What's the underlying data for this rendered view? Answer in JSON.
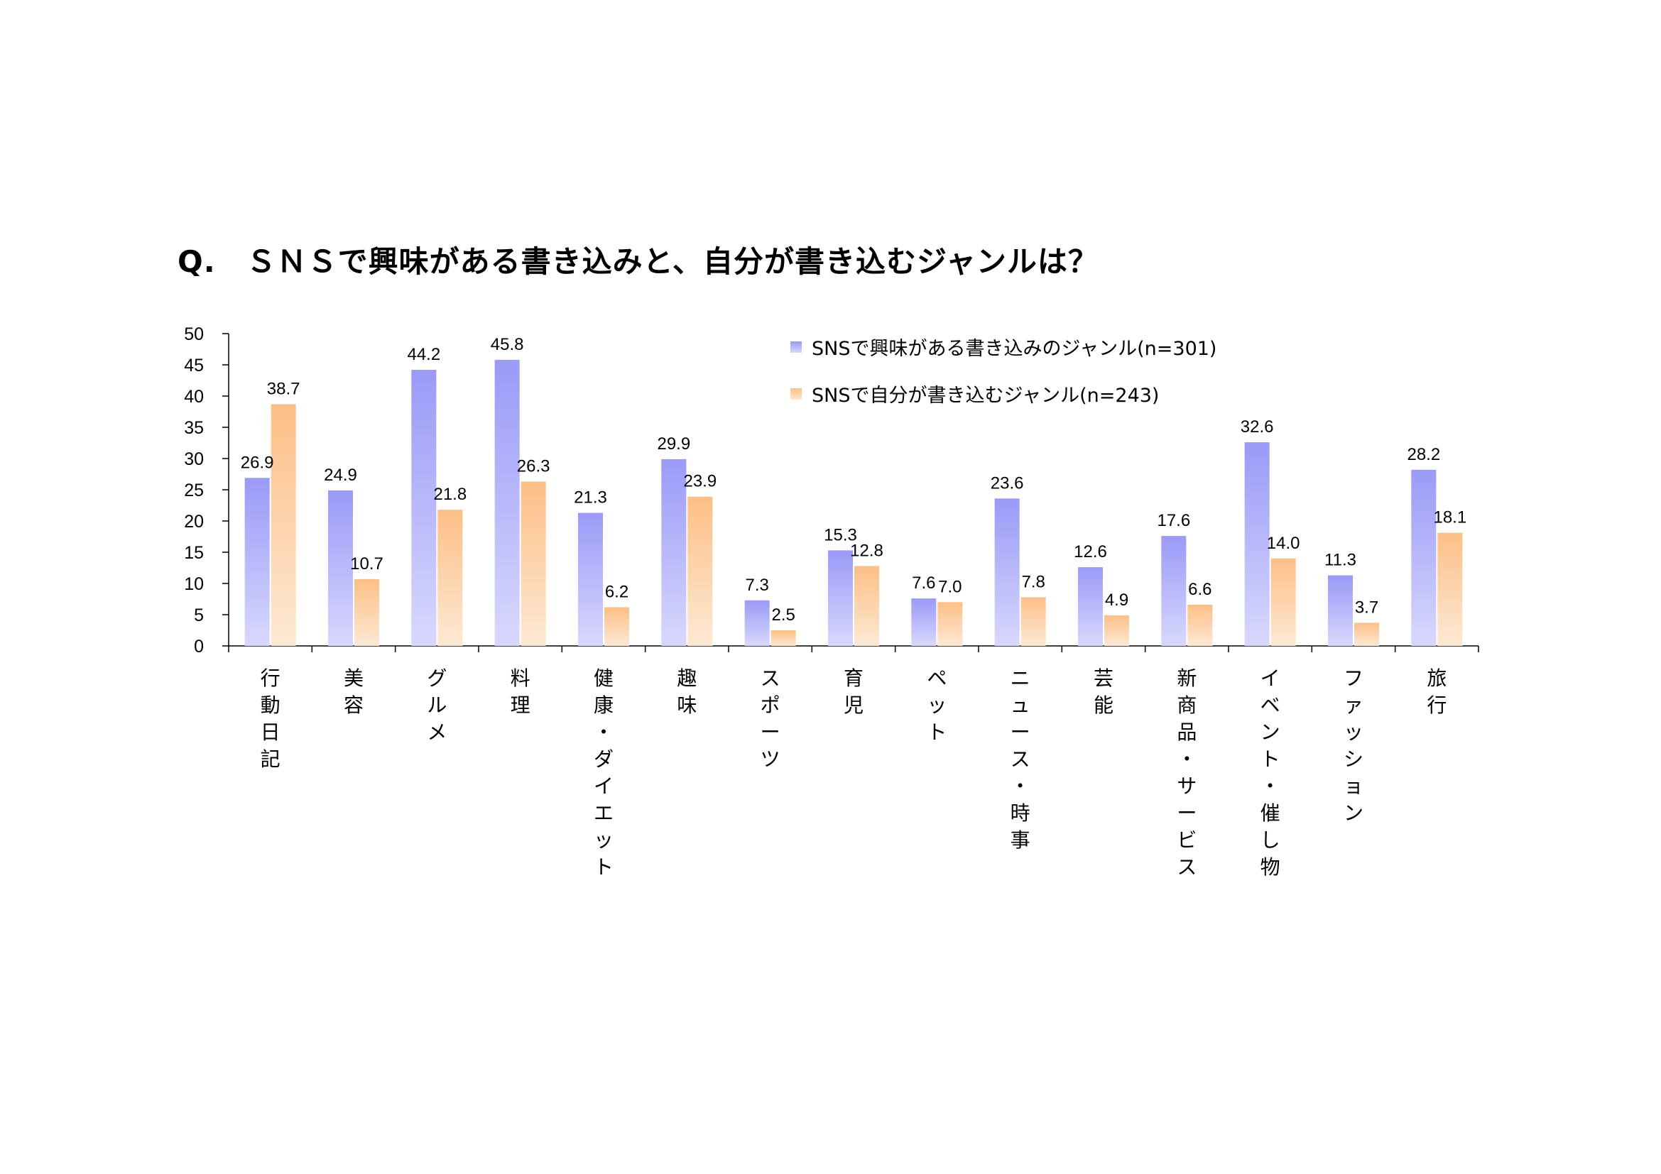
{
  "chart_data": {
    "type": "bar",
    "title": "Q.　ＳＮＳで興味がある書き込みと、自分が書き込むジャンルは？",
    "categories": [
      "行動日記",
      "美容",
      "グルメ",
      "料理",
      "健康・ダイエット",
      "趣味",
      "スポーツ",
      "育児",
      "ペット",
      "ニュース・時事",
      "芸能",
      "新商品・サービス",
      "イベント・催し物",
      "ファッション",
      "旅行"
    ],
    "series": [
      {
        "name": "SNSで興味がある書き込みのジャンル(n=301)",
        "color": "#9999ff",
        "values": [
          26.9,
          24.9,
          44.2,
          45.8,
          21.3,
          29.9,
          7.3,
          15.3,
          7.6,
          23.6,
          12.6,
          17.6,
          32.6,
          11.3,
          28.2
        ]
      },
      {
        "name": "SNSで自分が書き込むジャンル(n=243)",
        "color": "#ffc48c",
        "values": [
          38.7,
          10.7,
          21.8,
          26.3,
          6.2,
          23.9,
          2.5,
          12.8,
          7.0,
          7.8,
          4.9,
          6.6,
          14.0,
          3.7,
          18.1
        ]
      }
    ],
    "ylim": [
      0,
      50
    ],
    "yticks": [
      0,
      5,
      10,
      15,
      20,
      25,
      30,
      35,
      40,
      45,
      50
    ],
    "grid": false,
    "legend": "top-right"
  }
}
